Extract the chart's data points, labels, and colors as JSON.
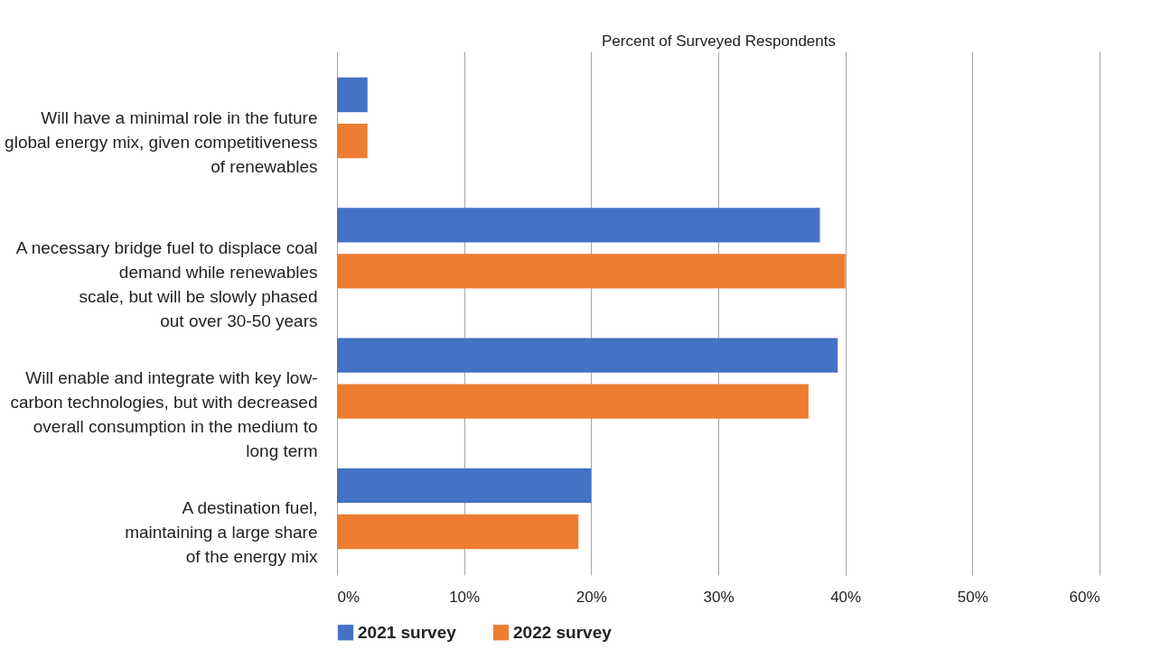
{
  "chart_data": {
    "type": "bar",
    "orientation": "horizontal",
    "xlabel": "Percent of Surveyed Respondents",
    "categories": [
      "Will have a minimal role in the future\nglobal energy mix, given competitiveness\nof renewables",
      "A necessary bridge fuel to displace coal\ndemand while renewables\nscale, but will be slowly phased\nout over 30-50 years",
      "Will enable and integrate with key low-\ncarbon technologies, but with decreased\noverall consumption in the medium to\nlong term",
      "A destination fuel,\nmaintaining a large share\nof the energy mix"
    ],
    "series": [
      {
        "name": "2021 survey",
        "color": "#4472c4",
        "values": [
          2.4,
          38.0,
          39.4,
          20.0
        ]
      },
      {
        "name": "2022 survey",
        "color": "#ed7d31",
        "values": [
          2.4,
          40.0,
          37.1,
          19.0
        ]
      }
    ],
    "xlim": [
      0,
      60
    ],
    "xticks": [
      {
        "value": 0,
        "label": "0%"
      },
      {
        "value": 10,
        "label": "10%"
      },
      {
        "value": 20,
        "label": "20%"
      },
      {
        "value": 30,
        "label": "30%"
      },
      {
        "value": 40,
        "label": "40%"
      },
      {
        "value": 50,
        "label": "50%"
      },
      {
        "value": 60,
        "label": "60%"
      }
    ],
    "grid": "x",
    "legend": "bottom"
  }
}
